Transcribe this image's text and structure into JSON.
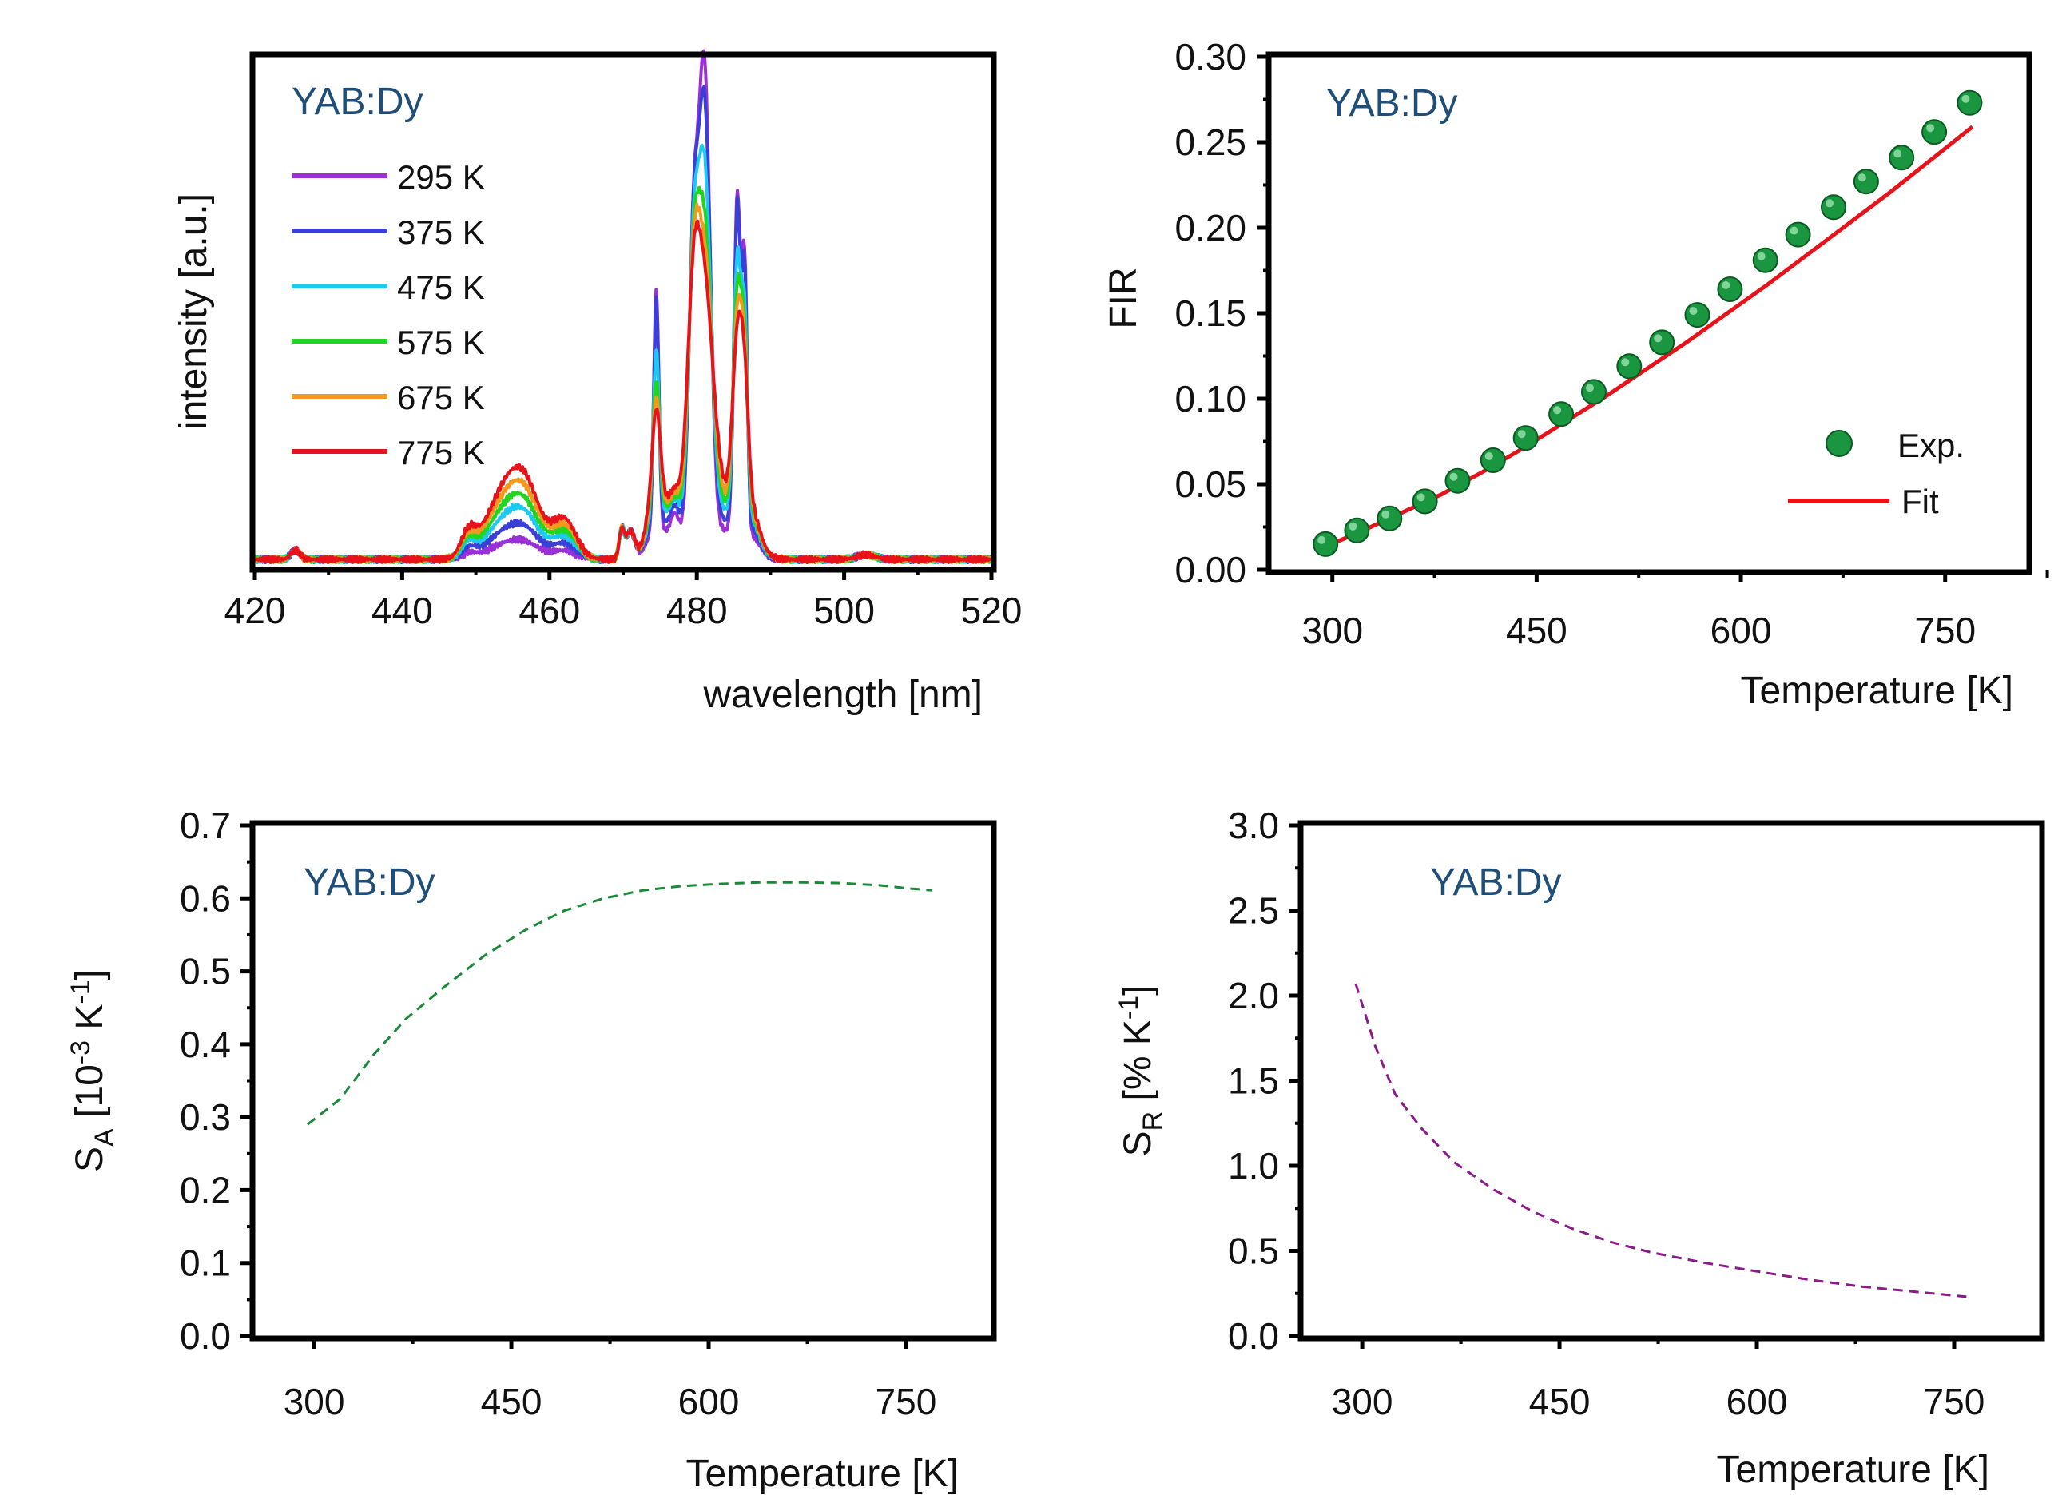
{
  "chart_data": [
    {
      "id": "spectra",
      "type": "line",
      "title": "",
      "annotation": "YAB:Dy",
      "xlabel": "wavelength [nm]",
      "ylabel": "intensity [a.u.]",
      "xlim": [
        420,
        520
      ],
      "ylim": [
        0,
        1.05
      ],
      "xticks": [
        "420",
        "440",
        "460",
        "480",
        "500",
        "520"
      ],
      "legend_position": "top-left",
      "series": [
        {
          "name": "295 K",
          "color": "#9b30d9",
          "scale": 1.0,
          "peaks": [
            [
              474.5,
              0.52,
              0.35
            ],
            [
              481,
              1.0,
              0.8
            ],
            [
              485.5,
              0.72,
              0.45
            ],
            [
              479.5,
              0.55,
              0.6
            ],
            [
              486.5,
              0.55,
              0.35
            ]
          ],
          "blue": 0.03,
          "step": 0.06
        },
        {
          "name": "375 K",
          "color": "#3a3fd8",
          "scale": 0.92,
          "peaks": [
            [
              474.5,
              0.52,
              0.35
            ],
            [
              481,
              0.98,
              0.85
            ],
            [
              485.5,
              0.74,
              0.45
            ],
            [
              479.5,
              0.55,
              0.6
            ],
            [
              486.5,
              0.55,
              0.35
            ]
          ],
          "blue": 0.055,
          "step": 0.08
        },
        {
          "name": "475 K",
          "color": "#1ccaf0",
          "scale": 0.78,
          "peaks": [
            [
              474.5,
              0.45,
              0.4
            ],
            [
              481,
              0.95,
              0.9
            ],
            [
              485.5,
              0.7,
              0.5
            ],
            [
              479.5,
              0.58,
              0.65
            ],
            [
              486.5,
              0.5,
              0.4
            ]
          ],
          "blue": 0.08,
          "step": 0.1
        },
        {
          "name": "575 K",
          "color": "#22d620",
          "scale": 0.66,
          "peaks": [
            [
              474.5,
              0.42,
              0.45
            ],
            [
              481,
              0.92,
              1.0
            ],
            [
              485.5,
              0.7,
              0.55
            ],
            [
              479.5,
              0.6,
              0.7
            ],
            [
              486.5,
              0.48,
              0.45
            ]
          ],
          "blue": 0.1,
          "step": 0.11
        },
        {
          "name": "675 K",
          "color": "#f39a1e",
          "scale": 0.58,
          "peaks": [
            [
              474.5,
              0.4,
              0.5
            ],
            [
              481,
              0.9,
              1.1
            ],
            [
              485.5,
              0.68,
              0.6
            ],
            [
              479.5,
              0.62,
              0.75
            ],
            [
              486.5,
              0.45,
              0.5
            ]
          ],
          "blue": 0.12,
          "step": 0.12
        },
        {
          "name": "775 K",
          "color": "#e8131a",
          "scale": 0.52,
          "peaks": [
            [
              474.5,
              0.38,
              0.55
            ],
            [
              481,
              0.88,
              1.2
            ],
            [
              485.5,
              0.65,
              0.65
            ],
            [
              479.5,
              0.62,
              0.8
            ],
            [
              486.5,
              0.42,
              0.55
            ]
          ],
          "blue": 0.14,
          "step": 0.13
        }
      ]
    },
    {
      "id": "fir",
      "type": "scatter",
      "annotation": "YAB:Dy",
      "xlabel": "Temperature [K]",
      "ylabel": "FIR",
      "xlim": [
        255,
        810
      ],
      "ylim": [
        0.0,
        0.3
      ],
      "xticks": [
        300,
        450,
        600,
        750
      ],
      "yticks": [
        "0.00",
        "0.05",
        "0.10",
        "0.15",
        "0.20",
        "0.25",
        "0.30"
      ],
      "legend_position": "bottom-right",
      "series": [
        {
          "name": "Exp.",
          "color": "#1a9641",
          "x": [
            295,
            318,
            342,
            368,
            392,
            418,
            442,
            468,
            492,
            518,
            542,
            568,
            592,
            618,
            642,
            668,
            692,
            718,
            742,
            768
          ],
          "y": [
            0.015,
            0.023,
            0.03,
            0.04,
            0.052,
            0.064,
            0.077,
            0.091,
            0.104,
            0.119,
            0.133,
            0.149,
            0.164,
            0.181,
            0.196,
            0.212,
            0.227,
            0.241,
            0.256,
            0.273
          ]
        },
        {
          "name": "Fit",
          "color": "#e8131a",
          "x": [
            290,
            320,
            350,
            380,
            410,
            440,
            470,
            500,
            530,
            560,
            590,
            620,
            650,
            680,
            710,
            740,
            770
          ],
          "y": [
            0.012,
            0.022,
            0.033,
            0.044,
            0.057,
            0.071,
            0.086,
            0.101,
            0.117,
            0.133,
            0.15,
            0.167,
            0.185,
            0.203,
            0.221,
            0.24,
            0.259
          ]
        }
      ]
    },
    {
      "id": "sa",
      "type": "line",
      "annotation": "YAB:Dy",
      "xlabel": "Temperature [K]",
      "ylabel_main": "S",
      "ylabel_sub": "A",
      "ylabel_unit_open": " [10",
      "ylabel_exp1": "-3",
      "ylabel_unit_mid": " K",
      "ylabel_exp2": "-1",
      "ylabel_unit_close": "]",
      "xlim": [
        255,
        815
      ],
      "ylim": [
        0.0,
        0.7
      ],
      "xticks": [
        300,
        450,
        600,
        750
      ],
      "yticks": [
        "0.0",
        "0.1",
        "0.2",
        "0.3",
        "0.4",
        "0.5",
        "0.6",
        "0.7"
      ],
      "series": [
        {
          "name": "S_A",
          "color": "#1a8a3a",
          "x": [
            295,
            320,
            345,
            370,
            400,
            430,
            460,
            490,
            520,
            550,
            580,
            610,
            640,
            670,
            700,
            730,
            750,
            770
          ],
          "y": [
            0.29,
            0.325,
            0.385,
            0.435,
            0.48,
            0.522,
            0.556,
            0.583,
            0.6,
            0.611,
            0.617,
            0.62,
            0.622,
            0.622,
            0.621,
            0.618,
            0.614,
            0.611
          ]
        }
      ]
    },
    {
      "id": "sr",
      "type": "line",
      "annotation": "YAB:Dy",
      "xlabel": "Temperature [K]",
      "ylabel_main": "S",
      "ylabel_sub": "R",
      "ylabel_unit_open": " [% K",
      "ylabel_exp": "-1",
      "ylabel_unit_close": "]",
      "xlim": [
        255,
        815
      ],
      "ylim": [
        0.0,
        3.0
      ],
      "xticks": [
        300,
        450,
        600,
        750
      ],
      "yticks": [
        "0.0",
        "0.5",
        "1.0",
        "1.5",
        "2.0",
        "2.5",
        "3.0"
      ],
      "series": [
        {
          "name": "S_R",
          "color": "#8b1a8b",
          "x": [
            295,
            310,
            325,
            345,
            370,
            400,
            430,
            460,
            490,
            520,
            560,
            600,
            640,
            680,
            720,
            760
          ],
          "y": [
            2.07,
            1.7,
            1.42,
            1.22,
            1.02,
            0.86,
            0.73,
            0.63,
            0.55,
            0.49,
            0.43,
            0.38,
            0.33,
            0.29,
            0.26,
            0.23
          ]
        }
      ]
    }
  ]
}
